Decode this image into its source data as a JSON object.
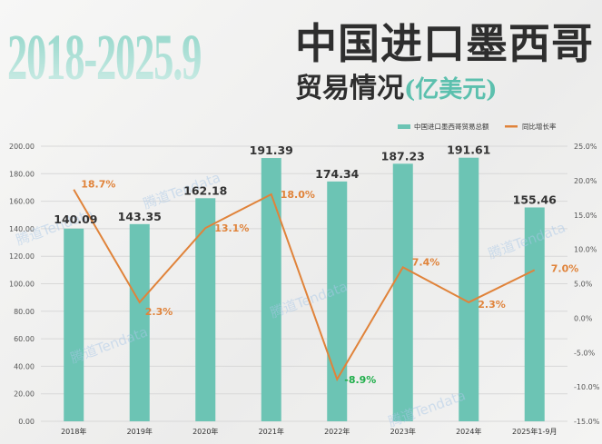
{
  "header": {
    "year_range": "2018-2025.9",
    "title_line1": "中国进口墨西哥",
    "title_line2": "贸易情况",
    "unit": "(亿美元)"
  },
  "watermark": "腾道Tendata",
  "colors": {
    "bar": "#6cc4b4",
    "line": "#e0833a",
    "positive_label": "#e0833a",
    "negative_label": "#1fae4a",
    "value_label": "#333333"
  },
  "chart_data": {
    "type": "bar+line",
    "categories": [
      "2018年",
      "2019年",
      "2020年",
      "2021年",
      "2022年",
      "2023年",
      "2024年",
      "2025年1-9月"
    ],
    "series": [
      {
        "name": "中国进口墨西哥贸易总额",
        "type": "bar",
        "axis": "left",
        "values": [
          140.09,
          143.35,
          162.18,
          191.39,
          174.34,
          187.23,
          191.61,
          155.46
        ]
      },
      {
        "name": "同比增长率",
        "type": "line",
        "axis": "right",
        "values": [
          18.7,
          2.3,
          13.1,
          18.0,
          -8.9,
          7.4,
          2.3,
          7.0
        ]
      }
    ],
    "y_left": {
      "range": [
        0,
        200
      ],
      "ticks": [
        "0.00",
        "20.00",
        "40.00",
        "60.00",
        "80.00",
        "100.00",
        "120.00",
        "140.00",
        "160.00",
        "180.00",
        "200.00"
      ]
    },
    "y_right": {
      "range": [
        -15,
        25
      ],
      "ticks": [
        "-15.0%",
        "-10.0%",
        "-5.0%",
        "0.0%",
        "5.0%",
        "10.0%",
        "15.0%",
        "20.0%",
        "25.0%"
      ]
    },
    "bar_labels": [
      "140.09",
      "143.35",
      "162.18",
      "191.39",
      "174.34",
      "187.23",
      "191.61",
      "155.46"
    ],
    "line_labels": [
      "18.7%",
      "2.3%",
      "13.1%",
      "18.0%",
      "-8.9%",
      "7.4%",
      "2.3%",
      "7.0%"
    ],
    "grid": true,
    "legend": "top-right"
  }
}
